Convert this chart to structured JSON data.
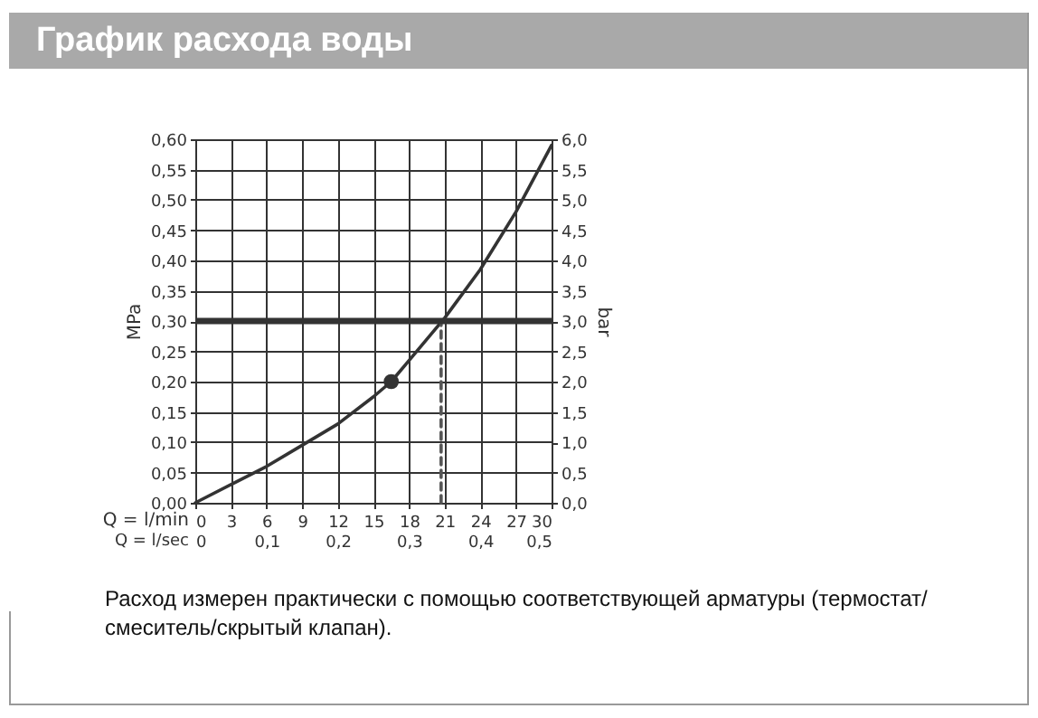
{
  "chart_data": {
    "type": "line",
    "title": "График расхода воды",
    "xlabel": "Q = l/min",
    "ylabel": "MPa",
    "y2label": "bar",
    "x2label": "Q = l/sec",
    "annotations": [
      "Расход измерен практически с помощью соответствующей арматуры (термостат/смеситель/скрытый клапан)."
    ],
    "xlim": [
      0,
      30
    ],
    "xticks": [
      0,
      3,
      6,
      9,
      12,
      15,
      18,
      21,
      24,
      27,
      30
    ],
    "ylim": [
      0,
      0.6
    ],
    "yticks": [
      {
        "value": 0,
        "label": "0,00"
      },
      {
        "value": 0.05,
        "label": "0,05"
      },
      {
        "value": 0.1,
        "label": "0,10"
      },
      {
        "value": 0.15,
        "label": "0,15"
      },
      {
        "value": 0.2,
        "label": "0,20"
      },
      {
        "value": 0.25,
        "label": "0,25"
      },
      {
        "value": 0.3,
        "label": "0,30"
      },
      {
        "value": 0.35,
        "label": "0,35"
      },
      {
        "value": 0.4,
        "label": "0,40"
      },
      {
        "value": 0.45,
        "label": "0,45"
      },
      {
        "value": 0.5,
        "label": "0,50"
      },
      {
        "value": 0.55,
        "label": "0,55"
      },
      {
        "value": 0.6,
        "label": "0,60"
      }
    ],
    "x2lim": [
      0,
      0.5
    ],
    "x2ticks": [
      0,
      {
        "value": 0.1,
        "label": "0,1"
      },
      {
        "value": 0.2,
        "label": "0,2"
      },
      {
        "value": 0.3,
        "label": "0,3"
      },
      {
        "value": 0.4,
        "label": "0,4"
      },
      {
        "value": 0.5,
        "label": "0,5"
      }
    ],
    "y2lim": [
      0,
      6
    ],
    "y2ticks": [
      {
        "value": 0,
        "label": "0,0"
      },
      {
        "value": 0.5,
        "label": "0,5"
      },
      {
        "value": 1,
        "label": "1,0"
      },
      {
        "value": 1.5,
        "label": "1,5"
      },
      {
        "value": 2,
        "label": "2,0"
      },
      {
        "value": 2.5,
        "label": "2,5"
      },
      {
        "value": 3,
        "label": "3,0"
      },
      {
        "value": 3.5,
        "label": "3,5"
      },
      {
        "value": 4,
        "label": "4,0"
      },
      {
        "value": 4.5,
        "label": "4,5"
      },
      {
        "value": 5,
        "label": "5,0"
      },
      {
        "value": 5.5,
        "label": "5,5"
      },
      {
        "value": 6,
        "label": "6,0"
      }
    ],
    "grid": true,
    "series": [
      {
        "type": "line",
        "color": "#333333",
        "x": [
          0,
          3,
          6,
          9,
          12,
          15,
          16.5,
          18,
          21,
          24,
          27,
          30
        ],
        "values": [
          0,
          0.03,
          0.06,
          0.095,
          0.13,
          0.175,
          0.2,
          0.235,
          0.305,
          0.385,
          0.48,
          0.59
        ]
      },
      {
        "type": "scatter",
        "color": "#333333",
        "marker": "circle",
        "x": [
          16.5
        ],
        "values": [
          0.2
        ]
      },
      {
        "type": "line",
        "color": "#555555",
        "line_style": "dashed",
        "x": [
          20.7,
          20.7
        ],
        "values": [
          0,
          0.3
        ]
      }
    ],
    "ref_lines": [
      {
        "axis": "y",
        "value": 0.3,
        "color": "#333333"
      }
    ]
  }
}
